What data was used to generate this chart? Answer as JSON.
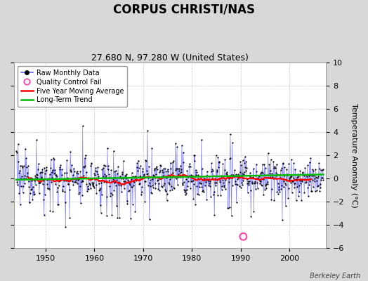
{
  "title": "CORPUS CHRISTI/NAS",
  "subtitle": "27.680 N, 97.280 W (United States)",
  "ylabel": "Temperature Anomaly (°C)",
  "credit": "Berkeley Earth",
  "year_start": 1944,
  "year_end": 2006,
  "ylim": [
    -6,
    10
  ],
  "yticks": [
    -6,
    -4,
    -2,
    0,
    2,
    4,
    6,
    8,
    10
  ],
  "xticks": [
    1950,
    1960,
    1970,
    1980,
    1990,
    2000
  ],
  "background_color": "#d8d8d8",
  "plot_bg_color": "#ffffff",
  "raw_line_color": "#6666ff",
  "raw_dot_color": "#000000",
  "moving_avg_color": "#ff0000",
  "trend_color": "#00bb00",
  "qc_fail_color": "#ff44aa",
  "seed": 12345,
  "title_fontsize": 12,
  "subtitle_fontsize": 9,
  "tick_fontsize": 8,
  "ylabel_fontsize": 8
}
